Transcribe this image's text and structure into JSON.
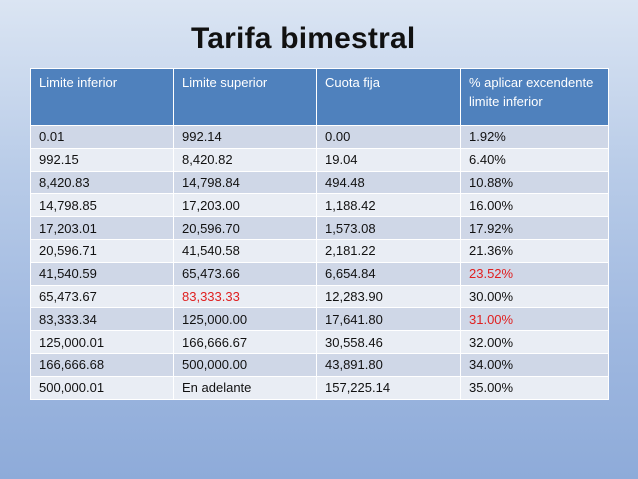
{
  "title": "Tarifa bimestral",
  "headers": [
    "Limite inferior",
    "Limite superior",
    "Cuota fija",
    "% aplicar excendente limite inferior"
  ],
  "rows": [
    {
      "li": "0.01",
      "ls": "992.14",
      "cf": "0.00",
      "pct": "1.92%"
    },
    {
      "li": "992.15",
      "ls": "8,420.82",
      "cf": "19.04",
      "pct": "6.40%"
    },
    {
      "li": "8,420.83",
      "ls": "14,798.84",
      "cf": "494.48",
      "pct": "10.88%"
    },
    {
      "li": "14,798.85",
      "ls": "17,203.00",
      "cf": "1,188.42",
      "pct": "16.00%"
    },
    {
      "li": "17,203.01",
      "ls": "20,596.70",
      "cf": "1,573.08",
      "pct": "17.92%"
    },
    {
      "li": "20,596.71",
      "ls": "41,540.58",
      "cf": "2,181.22",
      "pct": "21.36%"
    },
    {
      "li": "41,540.59",
      "ls": "65,473.66",
      "cf": "6,654.84",
      "pct": "23.52%"
    },
    {
      "li": "65,473.67",
      "ls": "83,333.33",
      "cf": "12,283.90",
      "pct": "30.00%"
    },
    {
      "li": "83,333.34",
      "ls": "125,000.00",
      "cf": "17,641.80",
      "pct": "31.00%"
    },
    {
      "li": "125,000.01",
      "ls": "166,666.67",
      "cf": "30,558.46",
      "pct": "32.00%"
    },
    {
      "li": "166,666.68",
      "ls": "500,000.00",
      "cf": "43,891.80",
      "pct": "34.00%"
    },
    {
      "li": "500,000.01",
      "ls": "En adelante",
      "cf": "157,225.14",
      "pct": "35.00%"
    }
  ],
  "colors": {
    "header_bg": "#4f81bd",
    "highlight": "#e02020"
  }
}
